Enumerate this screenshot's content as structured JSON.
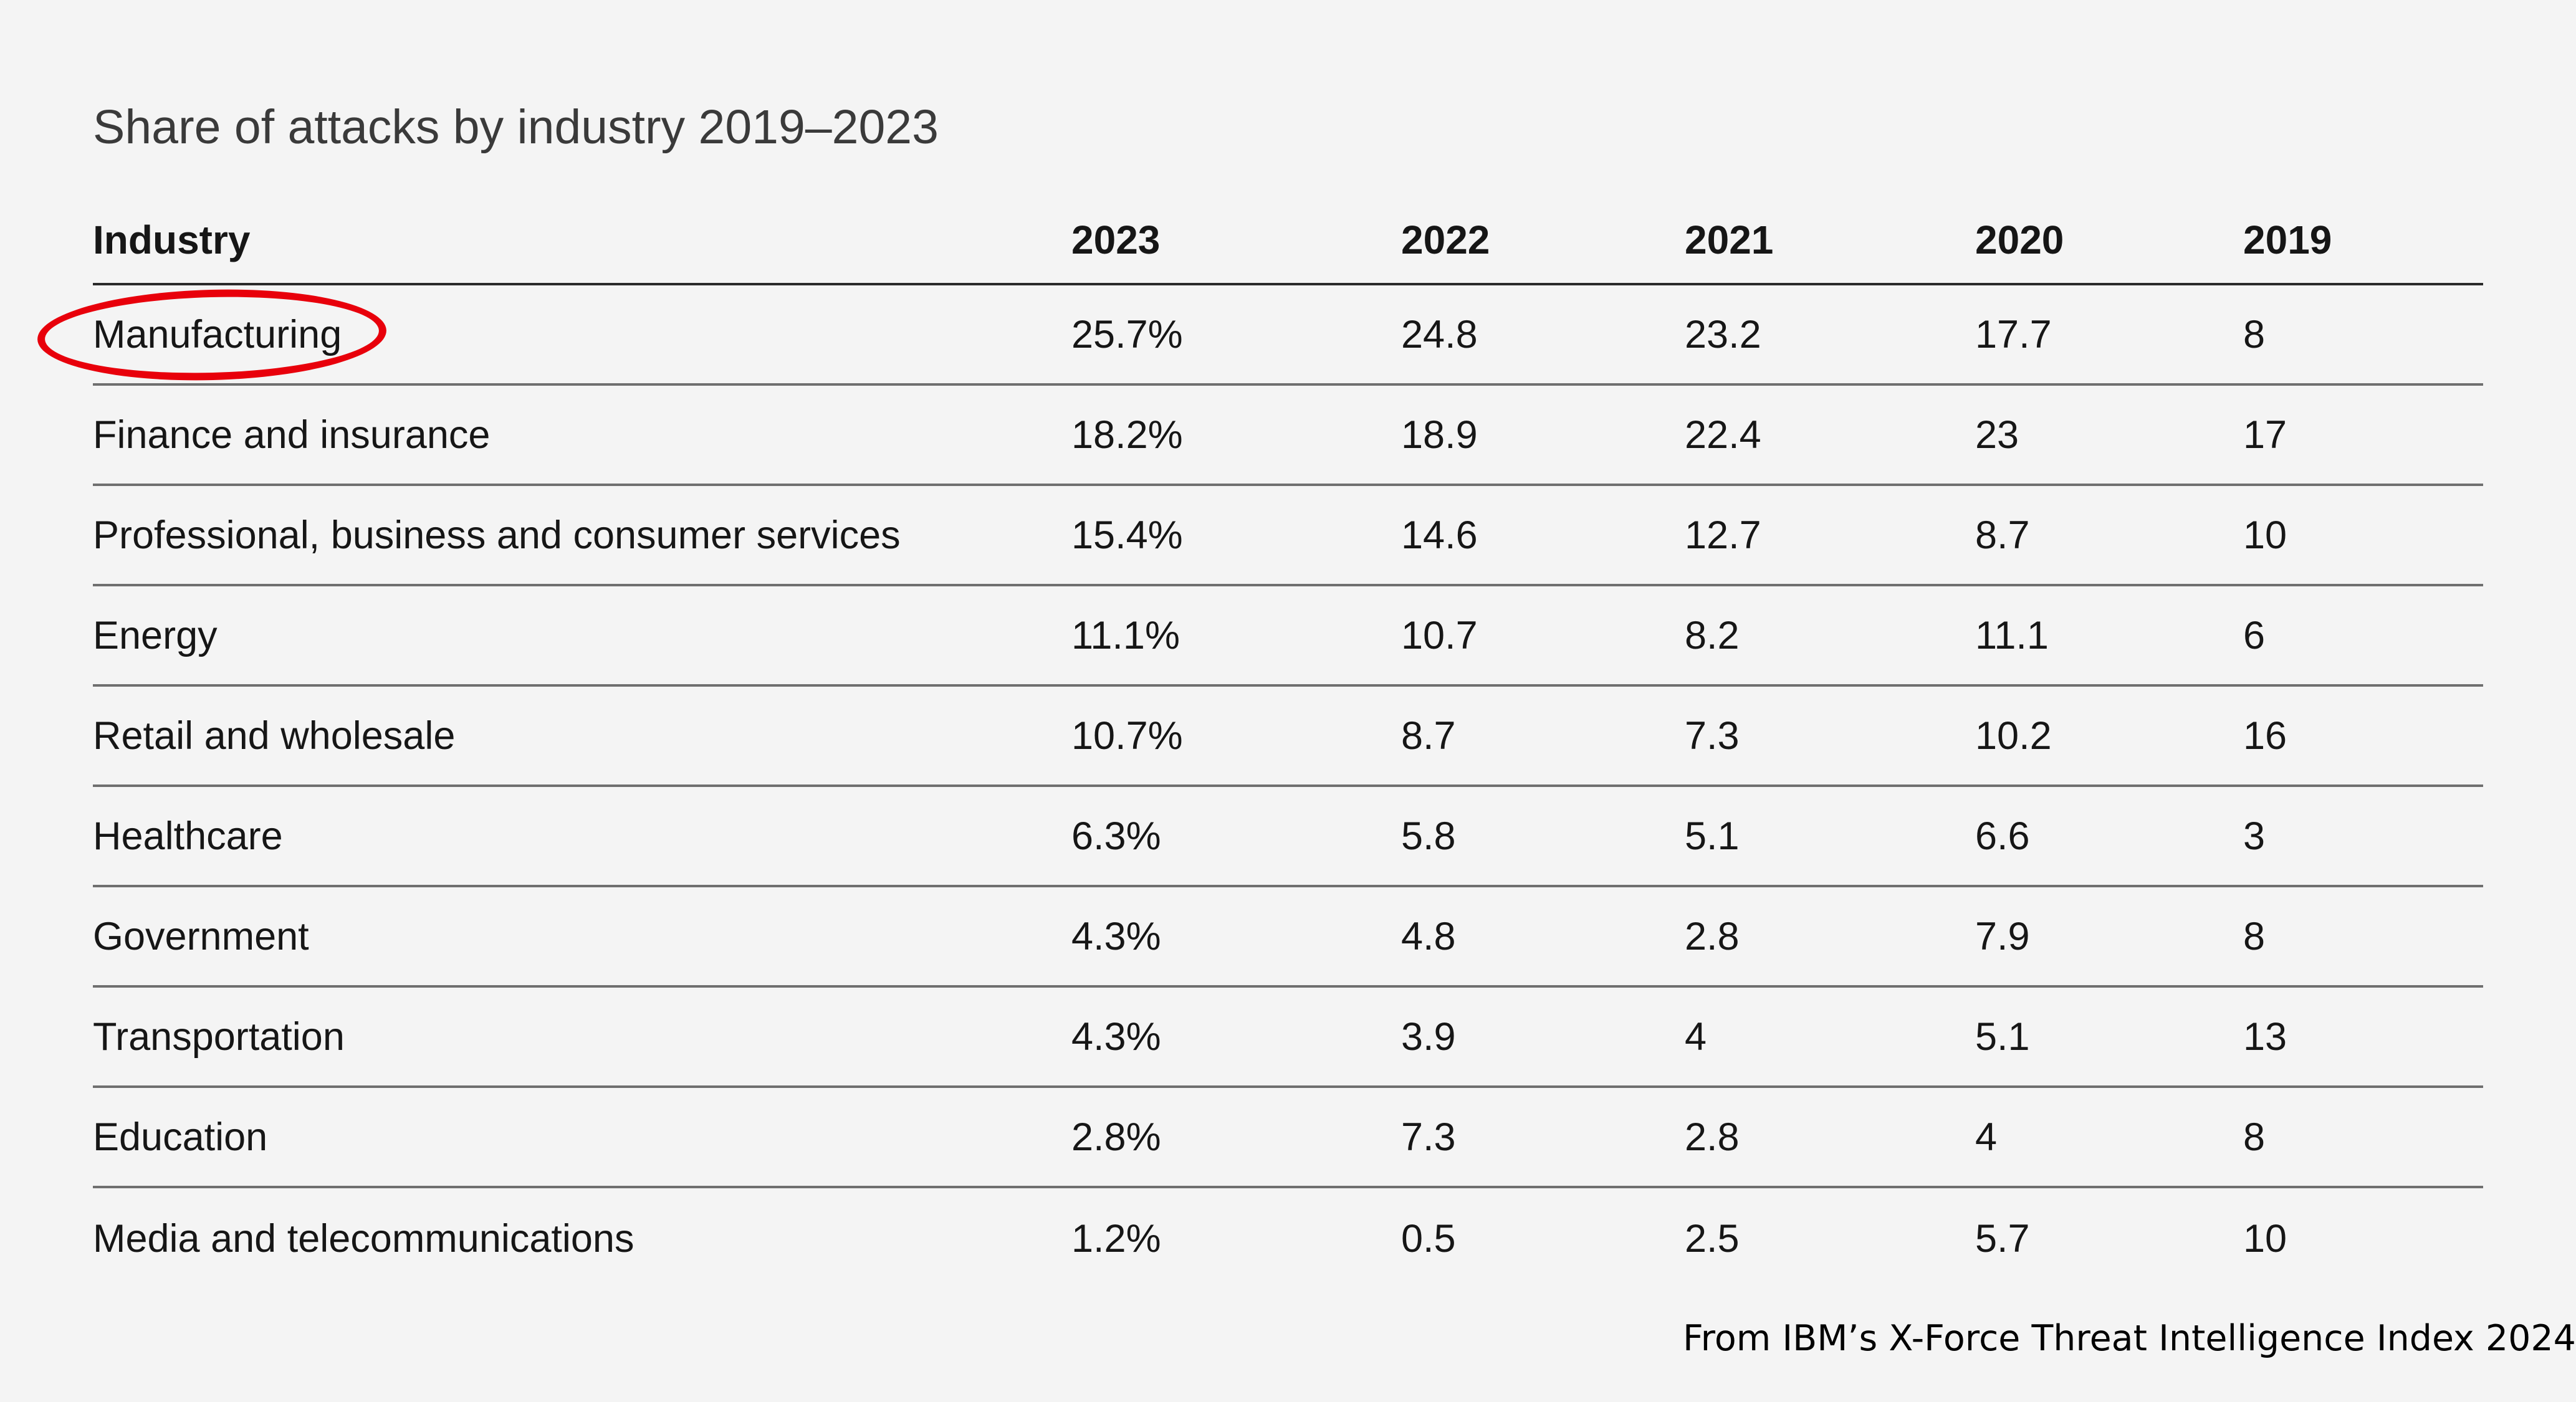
{
  "chart_data": {
    "type": "table",
    "title": "Share of attacks by industry 2019–2023",
    "columns": [
      "Industry",
      "2023",
      "2022",
      "2021",
      "2020",
      "2019"
    ],
    "rows": [
      [
        "Manufacturing",
        "25.7%",
        "24.8",
        "23.2",
        "17.7",
        "8"
      ],
      [
        "Finance and insurance",
        "18.2%",
        "18.9",
        "22.4",
        "23",
        "17"
      ],
      [
        "Professional, business and consumer services",
        "15.4%",
        "14.6",
        "12.7",
        "8.7",
        "10"
      ],
      [
        "Energy",
        "11.1%",
        "10.7",
        "8.2",
        "11.1",
        "6"
      ],
      [
        "Retail and wholesale",
        "10.7%",
        "8.7",
        "7.3",
        "10.2",
        "16"
      ],
      [
        "Healthcare",
        "6.3%",
        "5.8",
        "5.1",
        "6.6",
        "3"
      ],
      [
        "Government",
        "4.3%",
        "4.8",
        "2.8",
        "7.9",
        "8"
      ],
      [
        "Transportation",
        "4.3%",
        "3.9",
        "4",
        "5.1",
        "13"
      ],
      [
        "Education",
        "2.8%",
        "7.3",
        "2.8",
        "4",
        "8"
      ],
      [
        "Media and telecommunications",
        "1.2%",
        "0.5",
        "2.5",
        "5.7",
        "10"
      ]
    ],
    "highlighted_row": "Manufacturing",
    "highlight_color": "#e8000b",
    "source": "From IBM’s X-Force Threat Intelligence Index 2024"
  }
}
